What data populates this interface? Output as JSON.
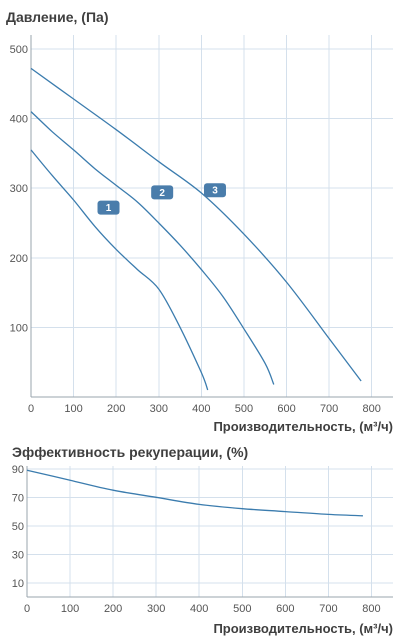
{
  "chart_data": [
    {
      "type": "line",
      "title": "Давление, (Па)",
      "xlabel": "Производительность, (м³/ч)",
      "ylabel": "",
      "xlim": [
        0,
        850
      ],
      "ylim": [
        0,
        520
      ],
      "xticks": [
        0,
        100,
        200,
        300,
        400,
        500,
        600,
        700,
        800
      ],
      "yticks": [
        100,
        200,
        300,
        400,
        500
      ],
      "grid": true,
      "series": [
        {
          "name": "1",
          "x": [
            0,
            50,
            100,
            150,
            200,
            250,
            300,
            350,
            400,
            415
          ],
          "y": [
            355,
            318,
            283,
            245,
            212,
            183,
            155,
            100,
            35,
            10
          ]
        },
        {
          "name": "2",
          "x": [
            0,
            50,
            100,
            150,
            200,
            250,
            300,
            350,
            400,
            450,
            500,
            550,
            570
          ],
          "y": [
            410,
            381,
            355,
            328,
            304,
            280,
            250,
            218,
            183,
            145,
            98,
            48,
            18
          ]
        },
        {
          "name": "3",
          "x": [
            0,
            100,
            200,
            300,
            400,
            500,
            600,
            700,
            775
          ],
          "y": [
            472,
            428,
            384,
            338,
            293,
            234,
            165,
            84,
            23
          ]
        }
      ],
      "labels": [
        {
          "text": "1",
          "x": 182,
          "y": 272
        },
        {
          "text": "2",
          "x": 308,
          "y": 294
        },
        {
          "text": "3",
          "x": 432,
          "y": 297
        }
      ]
    },
    {
      "type": "line",
      "title": "Эффективность рекуперации, (%)",
      "xlabel": "Производительность, (м³/ч)",
      "ylabel": "",
      "xlim": [
        0,
        850
      ],
      "ylim": [
        0,
        92
      ],
      "xticks": [
        0,
        100,
        200,
        300,
        400,
        500,
        600,
        700,
        800
      ],
      "yticks": [
        10,
        30,
        50,
        70,
        90
      ],
      "grid": true,
      "series": [
        {
          "name": "",
          "x": [
            0,
            100,
            200,
            300,
            400,
            500,
            600,
            700,
            780
          ],
          "y": [
            89,
            82,
            75,
            70,
            65,
            62,
            60,
            58,
            57
          ]
        }
      ]
    }
  ],
  "colors": {
    "curve": "#3b7cae",
    "grid": "#d4e0ec",
    "badge": "#4a7dab",
    "text": "#3f3f3f"
  }
}
